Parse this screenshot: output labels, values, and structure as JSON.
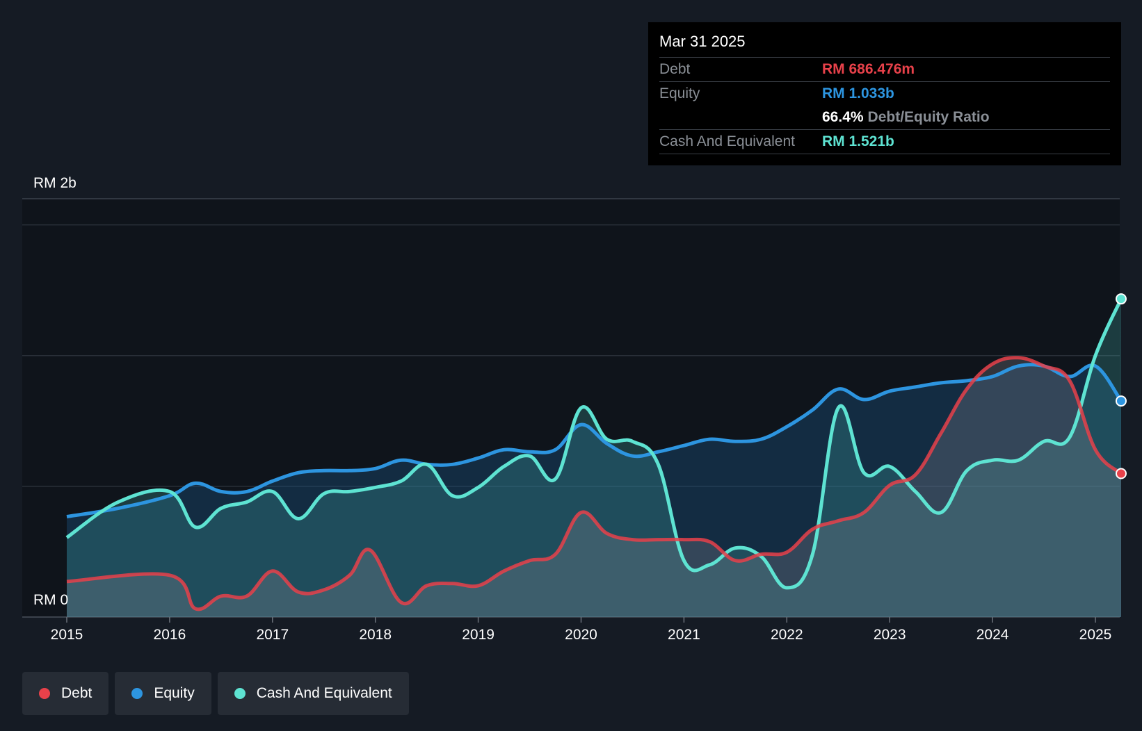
{
  "chart_data": {
    "type": "area",
    "y_axis_labels": [
      "RM 2b",
      "RM 0"
    ],
    "x_ticks": [
      "2015",
      "2016",
      "2017",
      "2018",
      "2019",
      "2020",
      "2021",
      "2022",
      "2023",
      "2024",
      "2025"
    ],
    "ylim": [
      0,
      2.0
    ],
    "units": "RM b",
    "grid": true,
    "legend_position": "bottom-left",
    "series": [
      {
        "name": "Debt",
        "color": "#e8414a",
        "x": [
          2015.0,
          2016.0,
          2016.25,
          2016.5,
          2016.75,
          2017.0,
          2017.25,
          2017.5,
          2017.75,
          2017.95,
          2018.25,
          2018.5,
          2018.75,
          2019.0,
          2019.25,
          2019.5,
          2019.75,
          2020.0,
          2020.25,
          2020.5,
          2020.75,
          2021.0,
          2021.25,
          2021.5,
          2021.75,
          2022.0,
          2022.25,
          2022.5,
          2022.75,
          2023.0,
          2023.25,
          2023.5,
          2023.75,
          2024.0,
          2024.25,
          2024.5,
          2024.75,
          2025.0,
          2025.25
        ],
        "values": [
          0.17,
          0.2,
          0.04,
          0.1,
          0.1,
          0.22,
          0.12,
          0.13,
          0.2,
          0.32,
          0.07,
          0.15,
          0.16,
          0.15,
          0.22,
          0.27,
          0.3,
          0.5,
          0.4,
          0.37,
          0.37,
          0.37,
          0.36,
          0.27,
          0.3,
          0.31,
          0.42,
          0.46,
          0.5,
          0.63,
          0.68,
          0.88,
          1.09,
          1.21,
          1.24,
          1.2,
          1.13,
          0.8,
          0.686
        ]
      },
      {
        "name": "Equity",
        "color": "#2d95e0",
        "x": [
          2015.0,
          2015.5,
          2016.0,
          2016.25,
          2016.5,
          2016.75,
          2017.0,
          2017.25,
          2017.5,
          2017.75,
          2018.0,
          2018.25,
          2018.5,
          2018.75,
          2019.0,
          2019.25,
          2019.5,
          2019.75,
          2020.0,
          2020.25,
          2020.5,
          2020.75,
          2021.0,
          2021.25,
          2021.5,
          2021.75,
          2022.0,
          2022.25,
          2022.5,
          2022.75,
          2023.0,
          2023.25,
          2023.5,
          2023.75,
          2024.0,
          2024.25,
          2024.5,
          2024.75,
          2025.0,
          2025.25
        ],
        "values": [
          0.48,
          0.52,
          0.58,
          0.64,
          0.6,
          0.6,
          0.65,
          0.69,
          0.7,
          0.7,
          0.71,
          0.75,
          0.73,
          0.73,
          0.76,
          0.8,
          0.79,
          0.8,
          0.92,
          0.83,
          0.77,
          0.79,
          0.82,
          0.85,
          0.84,
          0.85,
          0.91,
          0.99,
          1.09,
          1.04,
          1.08,
          1.1,
          1.12,
          1.13,
          1.15,
          1.2,
          1.2,
          1.15,
          1.2,
          1.033
        ]
      },
      {
        "name": "Cash And Equivalent",
        "color": "#5ee3d2",
        "x": [
          2015.0,
          2015.5,
          2016.0,
          2016.25,
          2016.5,
          2016.75,
          2017.0,
          2017.25,
          2017.5,
          2017.75,
          2018.0,
          2018.25,
          2018.5,
          2018.75,
          2019.0,
          2019.25,
          2019.5,
          2019.75,
          2020.0,
          2020.25,
          2020.5,
          2020.75,
          2021.0,
          2021.25,
          2021.5,
          2021.75,
          2022.0,
          2022.25,
          2022.5,
          2022.75,
          2023.0,
          2023.25,
          2023.5,
          2023.75,
          2024.0,
          2024.25,
          2024.5,
          2024.75,
          2025.0,
          2025.25
        ],
        "values": [
          0.38,
          0.55,
          0.6,
          0.43,
          0.52,
          0.55,
          0.6,
          0.47,
          0.59,
          0.6,
          0.62,
          0.65,
          0.73,
          0.58,
          0.62,
          0.72,
          0.77,
          0.66,
          1.0,
          0.85,
          0.84,
          0.73,
          0.27,
          0.25,
          0.33,
          0.29,
          0.14,
          0.3,
          1.0,
          0.69,
          0.72,
          0.6,
          0.5,
          0.7,
          0.75,
          0.75,
          0.84,
          0.86,
          1.25,
          1.521
        ]
      }
    ]
  },
  "tooltip": {
    "date": "Mar 31 2025",
    "debt_label": "Debt",
    "debt_value": "RM 686.476m",
    "equity_label": "Equity",
    "equity_value": "RM 1.033b",
    "ratio_value": "66.4%",
    "ratio_label": "Debt/Equity Ratio",
    "cash_label": "Cash And Equivalent",
    "cash_value": "RM 1.521b"
  },
  "legend": [
    {
      "label": "Debt",
      "color": "#e8414a"
    },
    {
      "label": "Equity",
      "color": "#2d95e0"
    },
    {
      "label": "Cash And Equivalent",
      "color": "#5ee3d2"
    }
  ]
}
